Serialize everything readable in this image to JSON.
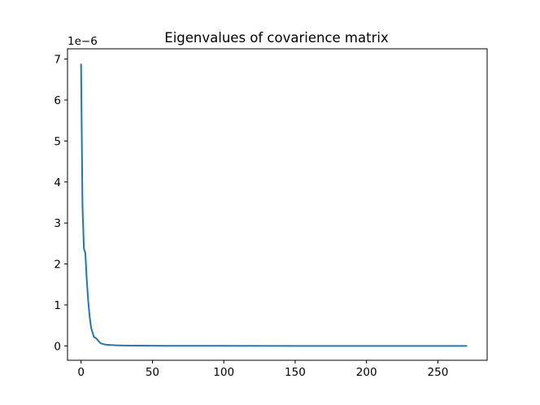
{
  "chart_data": {
    "type": "line",
    "title": "Eigenvalues of covarience matrix",
    "xlabel": "",
    "ylabel": "",
    "y_offset_text": "1e−6",
    "y_scale": 1e-06,
    "xlim": [
      -9.5,
      284.5
    ],
    "ylim": [
      -0.35,
      7.25
    ],
    "x_ticks": [
      0,
      50,
      100,
      150,
      200,
      250
    ],
    "x_tick_labels": [
      "0",
      "50",
      "100",
      "150",
      "200",
      "250"
    ],
    "y_ticks": [
      0,
      1,
      2,
      3,
      4,
      5,
      6,
      7
    ],
    "y_tick_labels": [
      "0",
      "1",
      "2",
      "3",
      "4",
      "5",
      "6",
      "7"
    ],
    "grid": false,
    "legend": "none",
    "series": [
      {
        "color": "#1f77b4",
        "x": [
          0,
          1,
          2,
          3,
          4,
          5,
          6,
          7,
          8,
          9,
          10,
          11,
          12,
          13,
          14,
          15,
          16,
          17,
          18,
          20,
          22,
          25,
          30,
          40,
          60,
          80,
          100,
          150,
          200,
          250,
          270
        ],
        "y": [
          6.87,
          3.4,
          2.38,
          2.26,
          1.6,
          1.1,
          0.72,
          0.45,
          0.33,
          0.22,
          0.2,
          0.17,
          0.13,
          0.09,
          0.06,
          0.05,
          0.04,
          0.035,
          0.03,
          0.025,
          0.02,
          0.015,
          0.01,
          0.006,
          0.003,
          0.002,
          0.001,
          0.0005,
          0.0002,
          0.0001,
          0.0
        ]
      }
    ]
  }
}
